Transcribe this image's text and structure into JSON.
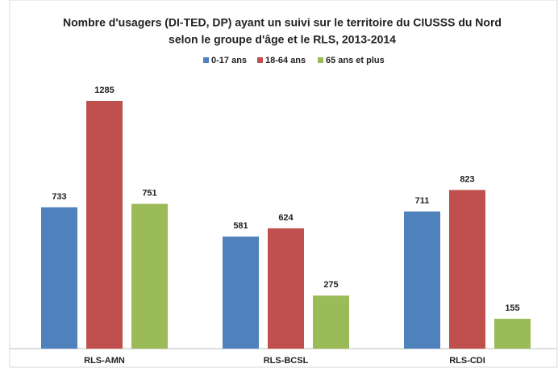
{
  "chart_data": {
    "type": "bar",
    "title": [
      "Nombre d'usagers (DI-TED, DP) ayant un suivi sur le territoire du CIUSSS du Nord",
      "selon le groupe d'âge et le RLS, 2013-2014"
    ],
    "categories": [
      "RLS-AMN",
      "RLS-BCSL",
      "RLS-CDI"
    ],
    "series": [
      {
        "name": "0-17 ans",
        "color": "#4f81bd",
        "values": [
          733,
          581,
          711
        ]
      },
      {
        "name": "18-64 ans",
        "color": "#c0504d",
        "values": [
          1285,
          624,
          823
        ]
      },
      {
        "name": "65 ans et plus",
        "color": "#9bbb59",
        "values": [
          751,
          275,
          155
        ]
      }
    ],
    "legend": "top"
  }
}
